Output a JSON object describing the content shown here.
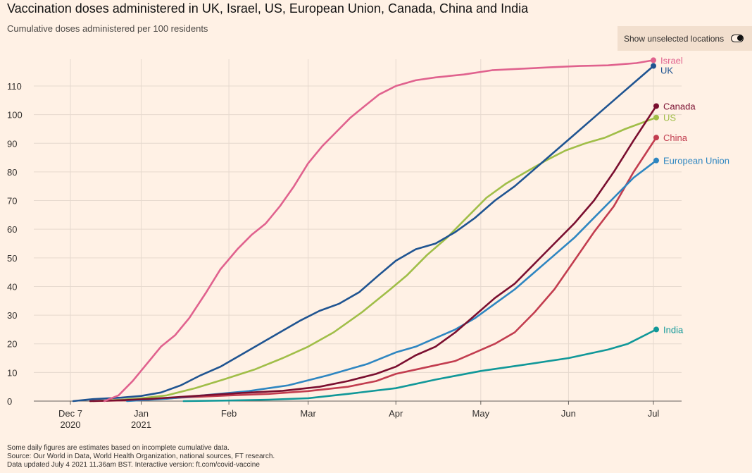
{
  "header": {
    "title": "Vaccination doses administered in UK, Israel, US, European Union, Canada, China and India",
    "subtitle": "Cumulative doses administered per 100 residents"
  },
  "toggle": {
    "label": "Show unselected locations",
    "state": "on"
  },
  "footnotes": {
    "note": "Some daily figures are estimates based on incomplete cumulative data.",
    "source": "Source: Our World in Data, World Health Organization, national sources, FT research.",
    "updated": "Data updated July 4 2021 11.36am BST. Interactive version: ft.com/covid-vaccine"
  },
  "chart_data": {
    "type": "line",
    "title": "Vaccination doses administered in UK, Israel, US, European Union, Canada, China and India",
    "subtitle": "Cumulative doses administered per 100 residents",
    "xlabel": "",
    "ylabel": "",
    "x_range": [
      "2020-11-29",
      "2021-07-12"
    ],
    "ylim": [
      0,
      118
    ],
    "yticks": [
      0,
      10,
      20,
      30,
      40,
      50,
      60,
      70,
      80,
      90,
      100,
      110
    ],
    "xticks": [
      {
        "date": "2020-12-07",
        "label": "Dec 7",
        "sublabel": "2020"
      },
      {
        "date": "2021-01-01",
        "label": "Jan",
        "sublabel": "2021"
      },
      {
        "date": "2021-02-01",
        "label": "Feb",
        "sublabel": ""
      },
      {
        "date": "2021-03-01",
        "label": "Mar",
        "sublabel": ""
      },
      {
        "date": "2021-04-01",
        "label": "Apr",
        "sublabel": ""
      },
      {
        "date": "2021-05-01",
        "label": "May",
        "sublabel": ""
      },
      {
        "date": "2021-06-01",
        "label": "Jun",
        "sublabel": ""
      },
      {
        "date": "2021-07-01",
        "label": "Jul",
        "sublabel": ""
      }
    ],
    "grid": true,
    "legend": "inline labels at line ends",
    "series": [
      {
        "name": "Israel",
        "color": "#e0628e",
        "points": [
          [
            "2020-12-19",
            0
          ],
          [
            "2020-12-24",
            2
          ],
          [
            "2020-12-29",
            7
          ],
          [
            "2021-01-03",
            13
          ],
          [
            "2021-01-08",
            19
          ],
          [
            "2021-01-13",
            23
          ],
          [
            "2021-01-18",
            29
          ],
          [
            "2021-01-24",
            38
          ],
          [
            "2021-01-29",
            46
          ],
          [
            "2021-02-04",
            53
          ],
          [
            "2021-02-09",
            58
          ],
          [
            "2021-02-14",
            62
          ],
          [
            "2021-02-19",
            68
          ],
          [
            "2021-02-24",
            75
          ],
          [
            "2021-03-01",
            83
          ],
          [
            "2021-03-06",
            89
          ],
          [
            "2021-03-11",
            94
          ],
          [
            "2021-03-16",
            99
          ],
          [
            "2021-03-21",
            103
          ],
          [
            "2021-03-26",
            107
          ],
          [
            "2021-04-01",
            110
          ],
          [
            "2021-04-08",
            112
          ],
          [
            "2021-04-15",
            113
          ],
          [
            "2021-04-25",
            114
          ],
          [
            "2021-05-05",
            115.5
          ],
          [
            "2021-05-15",
            116
          ],
          [
            "2021-05-25",
            116.5
          ],
          [
            "2021-06-05",
            117
          ],
          [
            "2021-06-15",
            117.2
          ],
          [
            "2021-06-25",
            118
          ],
          [
            "2021-07-01",
            119
          ]
        ]
      },
      {
        "name": "UK",
        "color": "#1f5491",
        "points": [
          [
            "2020-12-08",
            0
          ],
          [
            "2020-12-15",
            0.7
          ],
          [
            "2020-12-25",
            1.2
          ],
          [
            "2021-01-01",
            1.8
          ],
          [
            "2021-01-08",
            3
          ],
          [
            "2021-01-15",
            5.5
          ],
          [
            "2021-01-22",
            9
          ],
          [
            "2021-01-29",
            12
          ],
          [
            "2021-02-05",
            16
          ],
          [
            "2021-02-12",
            20
          ],
          [
            "2021-02-19",
            24
          ],
          [
            "2021-02-26",
            28
          ],
          [
            "2021-03-05",
            31.5
          ],
          [
            "2021-03-12",
            34
          ],
          [
            "2021-03-19",
            38
          ],
          [
            "2021-03-26",
            44
          ],
          [
            "2021-04-01",
            49
          ],
          [
            "2021-04-08",
            53
          ],
          [
            "2021-04-15",
            55
          ],
          [
            "2021-04-22",
            59
          ],
          [
            "2021-04-29",
            64
          ],
          [
            "2021-05-06",
            70
          ],
          [
            "2021-05-13",
            75
          ],
          [
            "2021-05-20",
            81
          ],
          [
            "2021-05-27",
            87
          ],
          [
            "2021-06-03",
            93
          ],
          [
            "2021-06-10",
            99
          ],
          [
            "2021-06-17",
            105
          ],
          [
            "2021-06-24",
            111
          ],
          [
            "2021-07-01",
            117
          ]
        ]
      },
      {
        "name": "Canada",
        "color": "#7a0e2f",
        "points": [
          [
            "2020-12-14",
            0
          ],
          [
            "2020-12-25",
            0.3
          ],
          [
            "2021-01-05",
            0.8
          ],
          [
            "2021-01-20",
            1.8
          ],
          [
            "2021-02-05",
            2.8
          ],
          [
            "2021-02-20",
            3.6
          ],
          [
            "2021-03-05",
            5
          ],
          [
            "2021-03-15",
            7
          ],
          [
            "2021-03-25",
            9.5
          ],
          [
            "2021-04-01",
            12
          ],
          [
            "2021-04-08",
            16
          ],
          [
            "2021-04-15",
            19
          ],
          [
            "2021-04-22",
            24
          ],
          [
            "2021-04-29",
            30
          ],
          [
            "2021-05-06",
            36
          ],
          [
            "2021-05-13",
            41
          ],
          [
            "2021-05-20",
            48
          ],
          [
            "2021-05-27",
            55
          ],
          [
            "2021-06-03",
            62
          ],
          [
            "2021-06-10",
            70
          ],
          [
            "2021-06-17",
            80
          ],
          [
            "2021-06-24",
            91
          ],
          [
            "2021-07-02",
            103
          ]
        ]
      },
      {
        "name": "US",
        "color": "#a0be48",
        "points": [
          [
            "2020-12-14",
            0
          ],
          [
            "2020-12-25",
            0.5
          ],
          [
            "2021-01-01",
            1
          ],
          [
            "2021-01-10",
            2
          ],
          [
            "2021-01-20",
            4.5
          ],
          [
            "2021-01-30",
            7.5
          ],
          [
            "2021-02-10",
            11
          ],
          [
            "2021-02-20",
            15
          ],
          [
            "2021-03-01",
            19
          ],
          [
            "2021-03-10",
            24
          ],
          [
            "2021-03-20",
            31
          ],
          [
            "2021-03-30",
            39
          ],
          [
            "2021-04-05",
            44
          ],
          [
            "2021-04-12",
            51
          ],
          [
            "2021-04-19",
            57
          ],
          [
            "2021-04-26",
            64
          ],
          [
            "2021-05-03",
            71
          ],
          [
            "2021-05-10",
            76
          ],
          [
            "2021-05-17",
            80
          ],
          [
            "2021-05-24",
            84
          ],
          [
            "2021-05-31",
            87.5
          ],
          [
            "2021-06-07",
            90
          ],
          [
            "2021-06-14",
            92
          ],
          [
            "2021-06-21",
            95
          ],
          [
            "2021-07-02",
            99
          ]
        ]
      },
      {
        "name": "China",
        "color": "#c23d4f",
        "points": [
          [
            "2020-12-15",
            0
          ],
          [
            "2021-01-01",
            0.4
          ],
          [
            "2021-01-15",
            1.2
          ],
          [
            "2021-02-01",
            2
          ],
          [
            "2021-02-15",
            2.5
          ],
          [
            "2021-03-01",
            3.5
          ],
          [
            "2021-03-15",
            5
          ],
          [
            "2021-03-25",
            7
          ],
          [
            "2021-04-01",
            9.5
          ],
          [
            "2021-04-08",
            11
          ],
          [
            "2021-04-15",
            12.5
          ],
          [
            "2021-04-22",
            14
          ],
          [
            "2021-04-29",
            17
          ],
          [
            "2021-05-06",
            20
          ],
          [
            "2021-05-13",
            24
          ],
          [
            "2021-05-20",
            31
          ],
          [
            "2021-05-27",
            39
          ],
          [
            "2021-06-03",
            49
          ],
          [
            "2021-06-10",
            59
          ],
          [
            "2021-06-17",
            68
          ],
          [
            "2021-06-24",
            80
          ],
          [
            "2021-07-02",
            92
          ]
        ]
      },
      {
        "name": "European Union",
        "color": "#2e86c1",
        "points": [
          [
            "2020-12-27",
            0
          ],
          [
            "2021-01-10",
            0.8
          ],
          [
            "2021-01-25",
            2.2
          ],
          [
            "2021-02-08",
            3.5
          ],
          [
            "2021-02-22",
            5.5
          ],
          [
            "2021-03-08",
            9
          ],
          [
            "2021-03-22",
            13
          ],
          [
            "2021-04-01",
            17
          ],
          [
            "2021-04-08",
            19
          ],
          [
            "2021-04-15",
            22
          ],
          [
            "2021-04-22",
            25
          ],
          [
            "2021-04-29",
            29
          ],
          [
            "2021-05-06",
            34
          ],
          [
            "2021-05-13",
            39
          ],
          [
            "2021-05-20",
            45
          ],
          [
            "2021-05-27",
            51
          ],
          [
            "2021-06-03",
            57
          ],
          [
            "2021-06-10",
            64
          ],
          [
            "2021-06-17",
            71
          ],
          [
            "2021-06-24",
            78
          ],
          [
            "2021-07-02",
            84
          ]
        ]
      },
      {
        "name": "India",
        "color": "#119899",
        "points": [
          [
            "2021-01-16",
            0
          ],
          [
            "2021-02-01",
            0.2
          ],
          [
            "2021-02-15",
            0.5
          ],
          [
            "2021-03-01",
            1
          ],
          [
            "2021-03-15",
            2.5
          ],
          [
            "2021-04-01",
            4.5
          ],
          [
            "2021-04-15",
            7.5
          ],
          [
            "2021-05-01",
            10.5
          ],
          [
            "2021-05-15",
            12.5
          ],
          [
            "2021-06-01",
            15
          ],
          [
            "2021-06-15",
            18
          ],
          [
            "2021-06-22",
            20
          ],
          [
            "2021-07-02",
            25
          ]
        ]
      }
    ],
    "end_labels": [
      {
        "name": "Israel",
        "y": 119
      },
      {
        "name": "UK",
        "y": 115.5
      },
      {
        "name": "Canada",
        "y": 103
      },
      {
        "name": "US",
        "y": 99
      },
      {
        "name": "China",
        "y": 92
      },
      {
        "name": "European Union",
        "y": 84
      },
      {
        "name": "India",
        "y": 25
      }
    ]
  }
}
